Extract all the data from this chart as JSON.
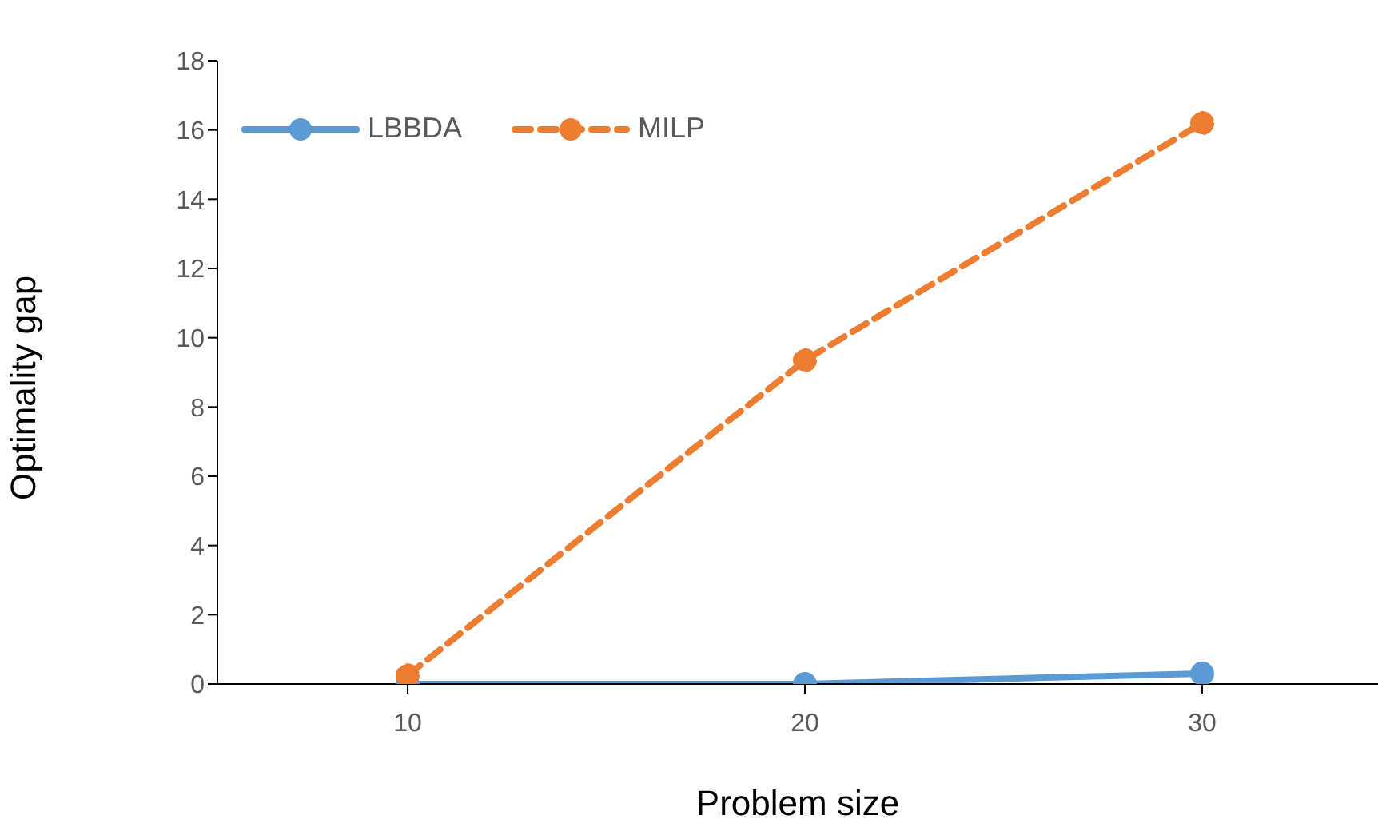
{
  "chart_data": {
    "type": "line",
    "xlabel": "Problem size",
    "ylabel": "Optimality gap",
    "categories": [
      "10",
      "20",
      "30"
    ],
    "series": [
      {
        "name": "LBBDA",
        "color": "#5b9bd5",
        "values": [
          0,
          0,
          0.3
        ],
        "line_style": "solid"
      },
      {
        "name": "MILP",
        "color": "#ed7d31",
        "values": [
          0.25,
          9.35,
          16.2
        ],
        "line_style": "dashed"
      }
    ],
    "ylim": [
      0,
      18
    ],
    "yticks": [
      0,
      2,
      4,
      6,
      8,
      10,
      12,
      14,
      16,
      18
    ],
    "grid": false,
    "legend": "top left",
    "marker": "circle"
  }
}
